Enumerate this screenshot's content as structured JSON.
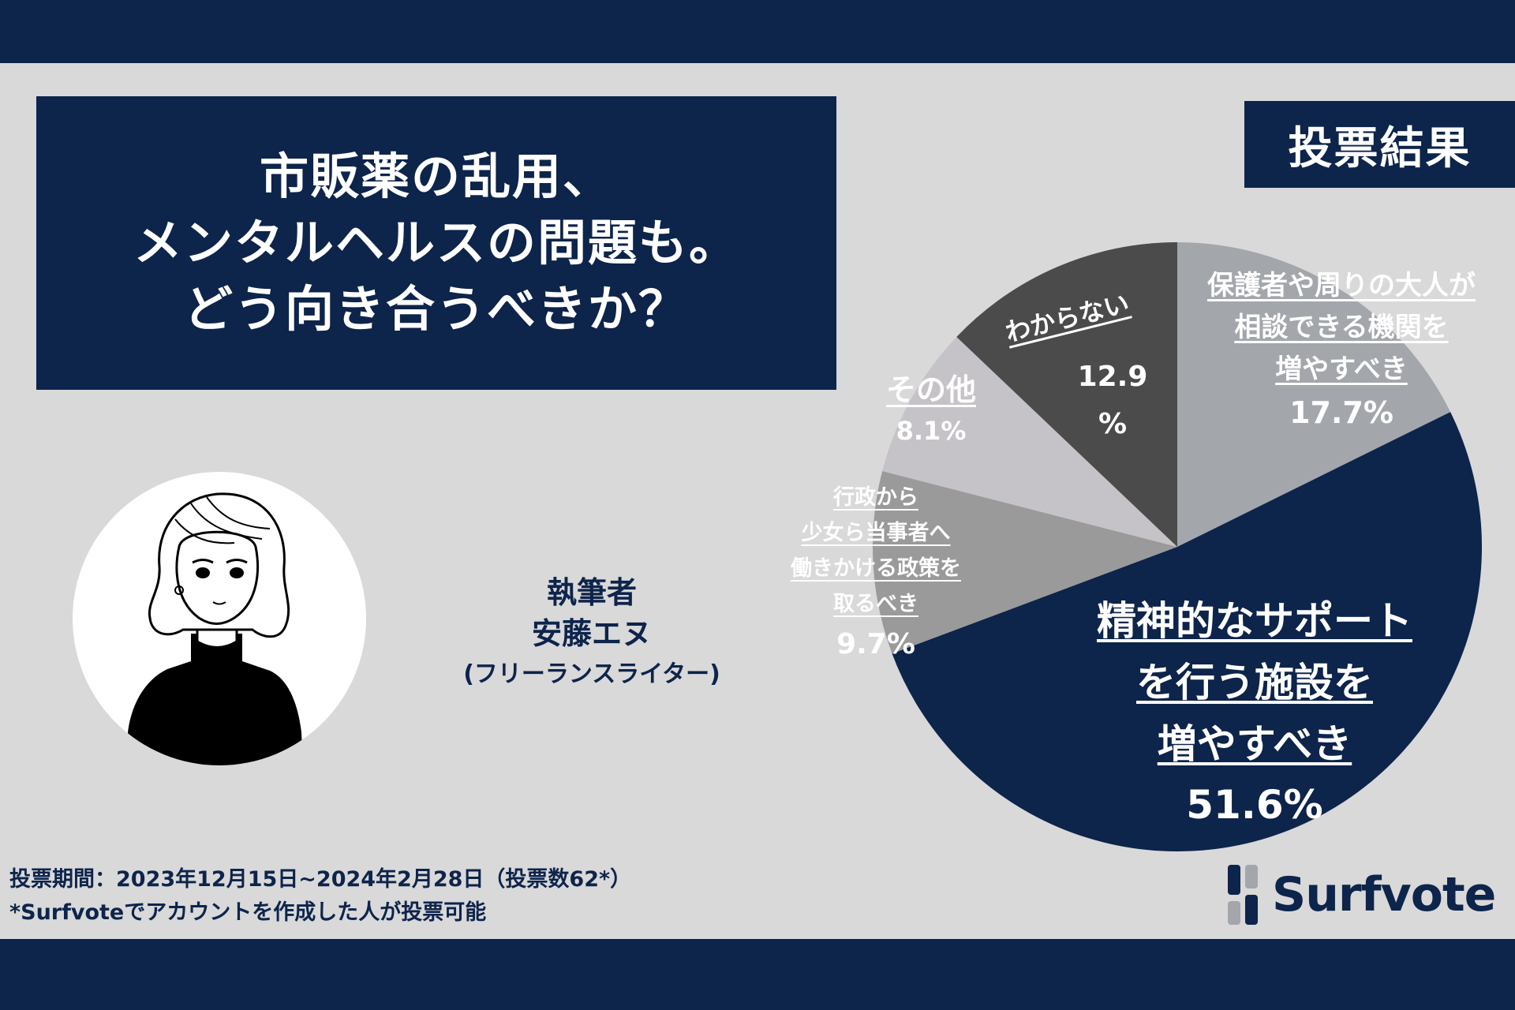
{
  "title": {
    "lines": [
      "市販薬の乱用、",
      "メンタルヘルスの問題も。",
      "どう向き合うべきか？"
    ]
  },
  "badge": "投票結果",
  "author": {
    "role": "執筆者",
    "name": "安藤エヌ",
    "title": "(フリーランスライター)"
  },
  "footer": {
    "period": "投票期間：2023年12月15日~2024年2月28日（投票数62*）",
    "note": "*Surfvoteでアカウントを作成した人が投票可能"
  },
  "logo": {
    "text": "Surfvote"
  },
  "chart_data": {
    "type": "pie",
    "slices": [
      {
        "label": "保護者や周りの大人が相談できる機関を増やすべき",
        "label_lines": [
          "保護者や周りの大人が",
          "相談できる機関を",
          "増やすべき"
        ],
        "value": 17.7,
        "value_text": "17.7%",
        "color": "#a3a6ab"
      },
      {
        "label": "精神的なサポートを行う施設を増やすべき",
        "label_lines": [
          "精神的なサポート",
          "を行う施設を",
          "増やすべき"
        ],
        "value": 51.6,
        "value_text": "51.6%",
        "color": "#0d244b"
      },
      {
        "label": "行政から少女ら当事者へ働きかける政策を取るべき",
        "label_lines": [
          "行政から",
          "少女ら当事者へ",
          "働きかける政策を",
          "取るべき"
        ],
        "value": 9.7,
        "value_text": "9.7%",
        "color": "#9a9a9a"
      },
      {
        "label": "その他",
        "label_lines": [
          "その他"
        ],
        "value": 8.1,
        "value_text": "8.1%",
        "color": "#c6c3c8"
      },
      {
        "label": "わからない",
        "label_lines": [
          "わからない"
        ],
        "value": 12.9,
        "value_text_lines": [
          "12.9",
          "%"
        ],
        "color": "#4b4b4b"
      }
    ]
  }
}
